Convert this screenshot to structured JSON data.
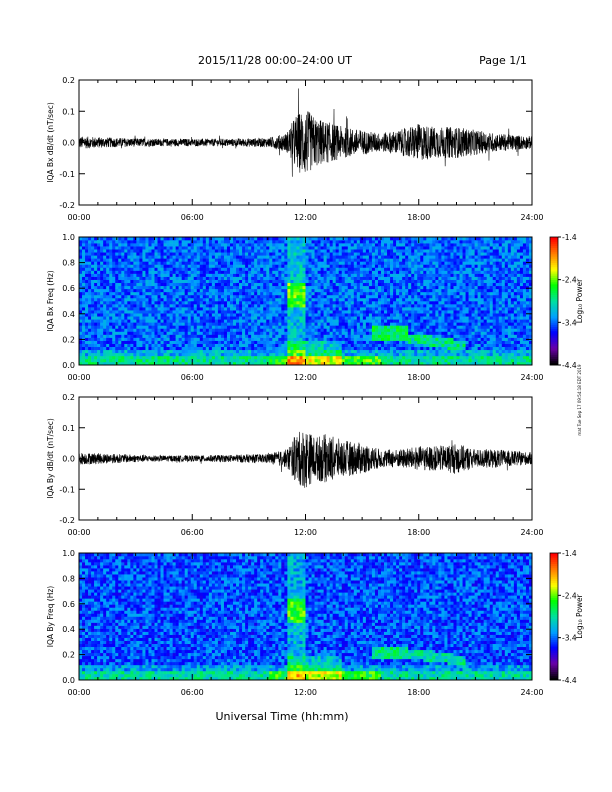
{
  "header": {
    "title": "2015/11/28  00:00–24:00 UT",
    "page": "Page 1/1"
  },
  "footer": {
    "xlabel": "Universal Time (hh:mm)"
  },
  "side_note": "mat Tue Sep 17 09:54:18 EDT 2019",
  "colors": {
    "colormap": [
      "#000000",
      "#6a00a8",
      "#0000ff",
      "#00a0ff",
      "#00e0a0",
      "#00ff00",
      "#ffff00",
      "#ff8000",
      "#ff0000"
    ],
    "trace": "#000000",
    "background_base": "#1e3ee0"
  },
  "chart_data": [
    {
      "type": "line",
      "name": "bx-timeseries",
      "ylabel": "IQA Bx dB/dt (nT/sec)",
      "xlim": [
        0,
        24
      ],
      "ylim": [
        -0.2,
        0.2
      ],
      "y_ticks": [
        "-0.2",
        "-0.1",
        "0.0",
        "0.1",
        "0.2"
      ],
      "y_tick_values": [
        -0.2,
        -0.1,
        0.0,
        0.1,
        0.2
      ],
      "x_ticks": [
        "00:00",
        "06:00",
        "12:00",
        "18:00",
        "24:00"
      ],
      "envelope": {
        "hours": [
          0,
          2,
          4,
          6,
          8,
          10,
          11,
          11.5,
          12,
          12.5,
          13,
          14,
          15,
          16,
          17,
          18,
          19,
          20,
          21,
          22,
          24
        ],
        "amplitude": [
          0.02,
          0.015,
          0.012,
          0.012,
          0.012,
          0.015,
          0.03,
          0.09,
          0.11,
          0.08,
          0.07,
          0.05,
          0.04,
          0.03,
          0.04,
          0.06,
          0.05,
          0.05,
          0.04,
          0.03,
          0.02
        ]
      }
    },
    {
      "type": "heatmap",
      "name": "bx-spectrogram",
      "ylabel": "IQA Bx Freq (Hz)",
      "xlim": [
        0,
        24
      ],
      "ylim": [
        0,
        1.0
      ],
      "y_ticks": [
        "0.0",
        "0.2",
        "0.4",
        "0.6",
        "0.8",
        "1.0"
      ],
      "y_tick_values": [
        0,
        0.2,
        0.4,
        0.6,
        0.8,
        1.0
      ],
      "x_ticks": [
        "00:00",
        "06:00",
        "12:00",
        "18:00",
        "24:00"
      ],
      "colorbar_label": "Log₁₀ Power",
      "colorbar_range": [
        -4.4,
        -1.4
      ],
      "colorbar_ticks": [
        "-1.4",
        "-2.4",
        "-3.4",
        "-4.4"
      ],
      "colorbar_tick_values": [
        -1.4,
        -2.4,
        -3.4,
        -4.4
      ]
    },
    {
      "type": "line",
      "name": "by-timeseries",
      "ylabel": "IQA By dB/dt (nT/sec)",
      "xlim": [
        0,
        24
      ],
      "ylim": [
        -0.2,
        0.2
      ],
      "y_ticks": [
        "-0.2",
        "-0.1",
        "0.0",
        "0.1",
        "0.2"
      ],
      "y_tick_values": [
        -0.2,
        -0.1,
        0.0,
        0.1,
        0.2
      ],
      "x_ticks": [
        "00:00",
        "06:00",
        "12:00",
        "18:00",
        "24:00"
      ],
      "envelope": {
        "hours": [
          0,
          2,
          4,
          6,
          8,
          10,
          11,
          11.5,
          12,
          12.5,
          13,
          14,
          15,
          16,
          17,
          18,
          19,
          20,
          21,
          22,
          24
        ],
        "amplitude": [
          0.02,
          0.015,
          0.01,
          0.01,
          0.012,
          0.015,
          0.03,
          0.08,
          0.1,
          0.07,
          0.08,
          0.06,
          0.05,
          0.03,
          0.03,
          0.04,
          0.04,
          0.05,
          0.03,
          0.03,
          0.02
        ]
      }
    },
    {
      "type": "heatmap",
      "name": "by-spectrogram",
      "ylabel": "IQA By Freq (Hz)",
      "xlim": [
        0,
        24
      ],
      "ylim": [
        0,
        1.0
      ],
      "y_ticks": [
        "0.0",
        "0.2",
        "0.4",
        "0.6",
        "0.8",
        "1.0"
      ],
      "y_tick_values": [
        0,
        0.2,
        0.4,
        0.6,
        0.8,
        1.0
      ],
      "x_ticks": [
        "00:00",
        "06:00",
        "12:00",
        "18:00",
        "24:00"
      ],
      "colorbar_label": "Log₁₀ Power",
      "colorbar_range": [
        -4.4,
        -1.4
      ],
      "colorbar_ticks": [
        "-1.4",
        "-2.4",
        "-3.4",
        "-4.4"
      ],
      "colorbar_tick_values": [
        -1.4,
        -2.4,
        -3.4,
        -4.4
      ]
    }
  ]
}
